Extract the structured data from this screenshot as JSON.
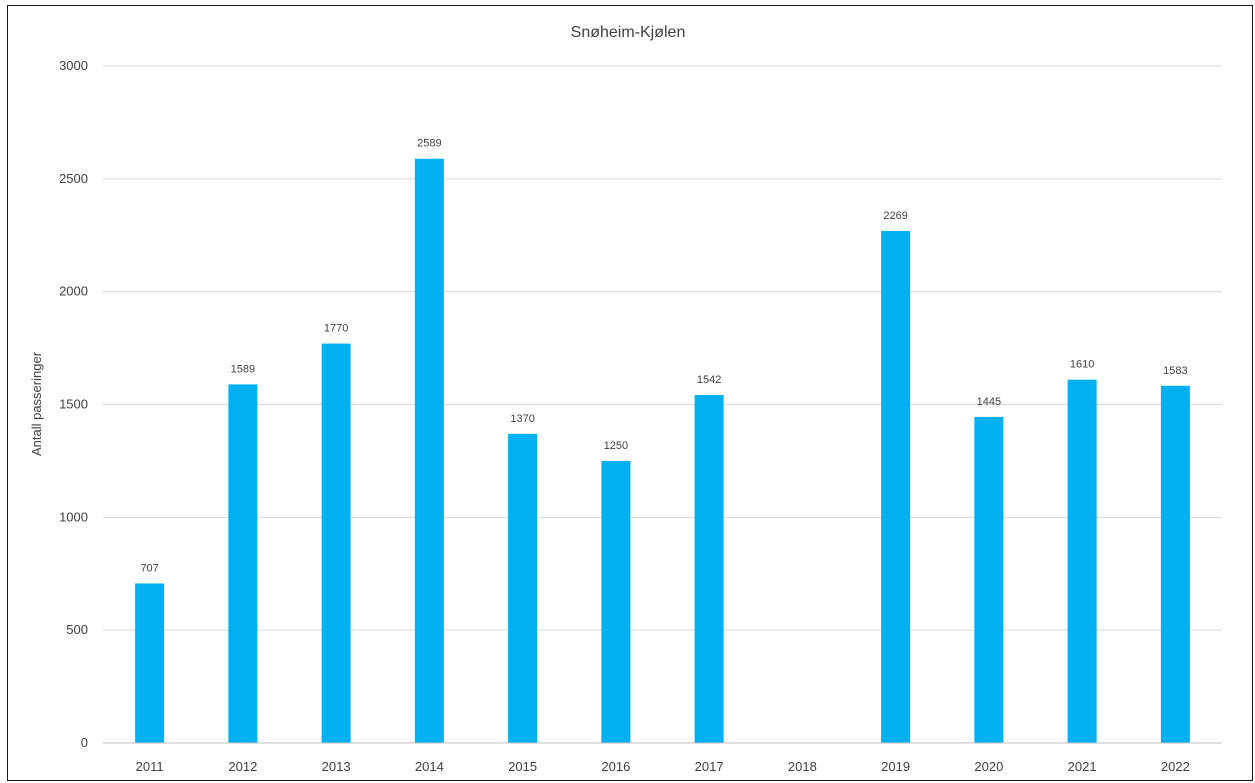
{
  "chart_data": {
    "type": "bar",
    "title": "Snøheim-Kjølen",
    "xlabel": "",
    "ylabel": "Antall passeringer",
    "categories": [
      "2011",
      "2012",
      "2013",
      "2014",
      "2015",
      "2016",
      "2017",
      "2018",
      "2019",
      "2020",
      "2021",
      "2022"
    ],
    "values": [
      707,
      1589,
      1770,
      2589,
      1370,
      1250,
      1542,
      null,
      2269,
      1445,
      1610,
      1583
    ],
    "data_labels": [
      "707",
      "1589",
      "1770",
      "2589",
      "1370",
      "1250",
      "1542",
      "",
      "2269",
      "1445",
      "1610",
      "1583"
    ],
    "ylim": [
      0,
      3000
    ],
    "yticks": [
      "0",
      "500",
      "1000",
      "1500",
      "2000",
      "2500",
      "3000"
    ],
    "grid": true,
    "legend": "none",
    "bar_color": "#00B0F0",
    "grid_color": "#D9D9D9"
  }
}
